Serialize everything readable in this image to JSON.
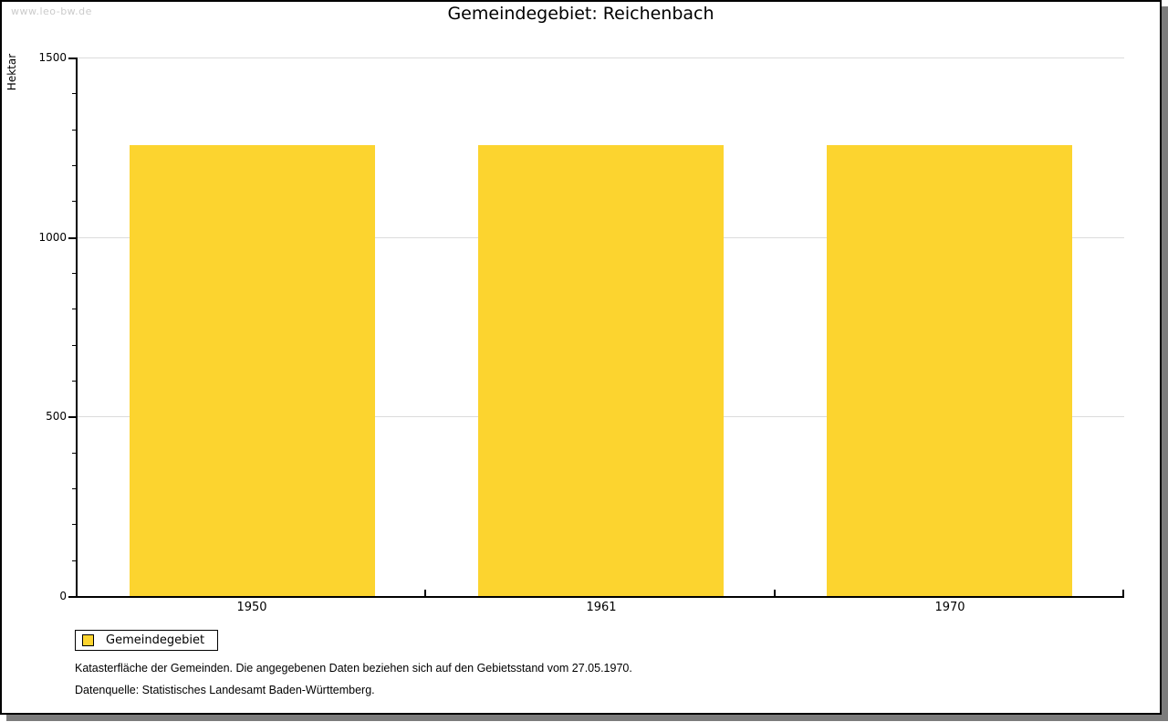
{
  "page": {
    "watermark": "www.leo-bw.de",
    "title": "Gemeindegebiet: Reichenbach"
  },
  "chart_data": {
    "type": "bar",
    "title": "Gemeindegebiet: Reichenbach",
    "categories": [
      "1950",
      "1961",
      "1970"
    ],
    "series": [
      {
        "name": "Gemeindegebiet",
        "values": [
          1256,
          1256,
          1256
        ]
      }
    ],
    "xlabel": "",
    "ylabel": "Hektar",
    "ylim": [
      0,
      1500
    ],
    "y_major_ticks": [
      0,
      500,
      1000,
      1500
    ],
    "y_minor_step": 100,
    "grid": "horizontal-major",
    "legend_position": "bottom-left",
    "bar_color": "#FCD42F"
  },
  "legend": {
    "label": "Gemeindegebiet"
  },
  "footnotes": [
    "Katasterfläche der Gemeinden. Die angegebenen Daten beziehen sich auf den Gebietsstand vom 27.05.1970.",
    "Datenquelle: Statistisches Landesamt Baden-Württemberg."
  ],
  "colors": {
    "bar": "#FCD42F",
    "grid": "#DCDCDC",
    "axis": "#000000",
    "watermark": "#CBCBCB",
    "frame_shadow": "#7C7C7C"
  }
}
